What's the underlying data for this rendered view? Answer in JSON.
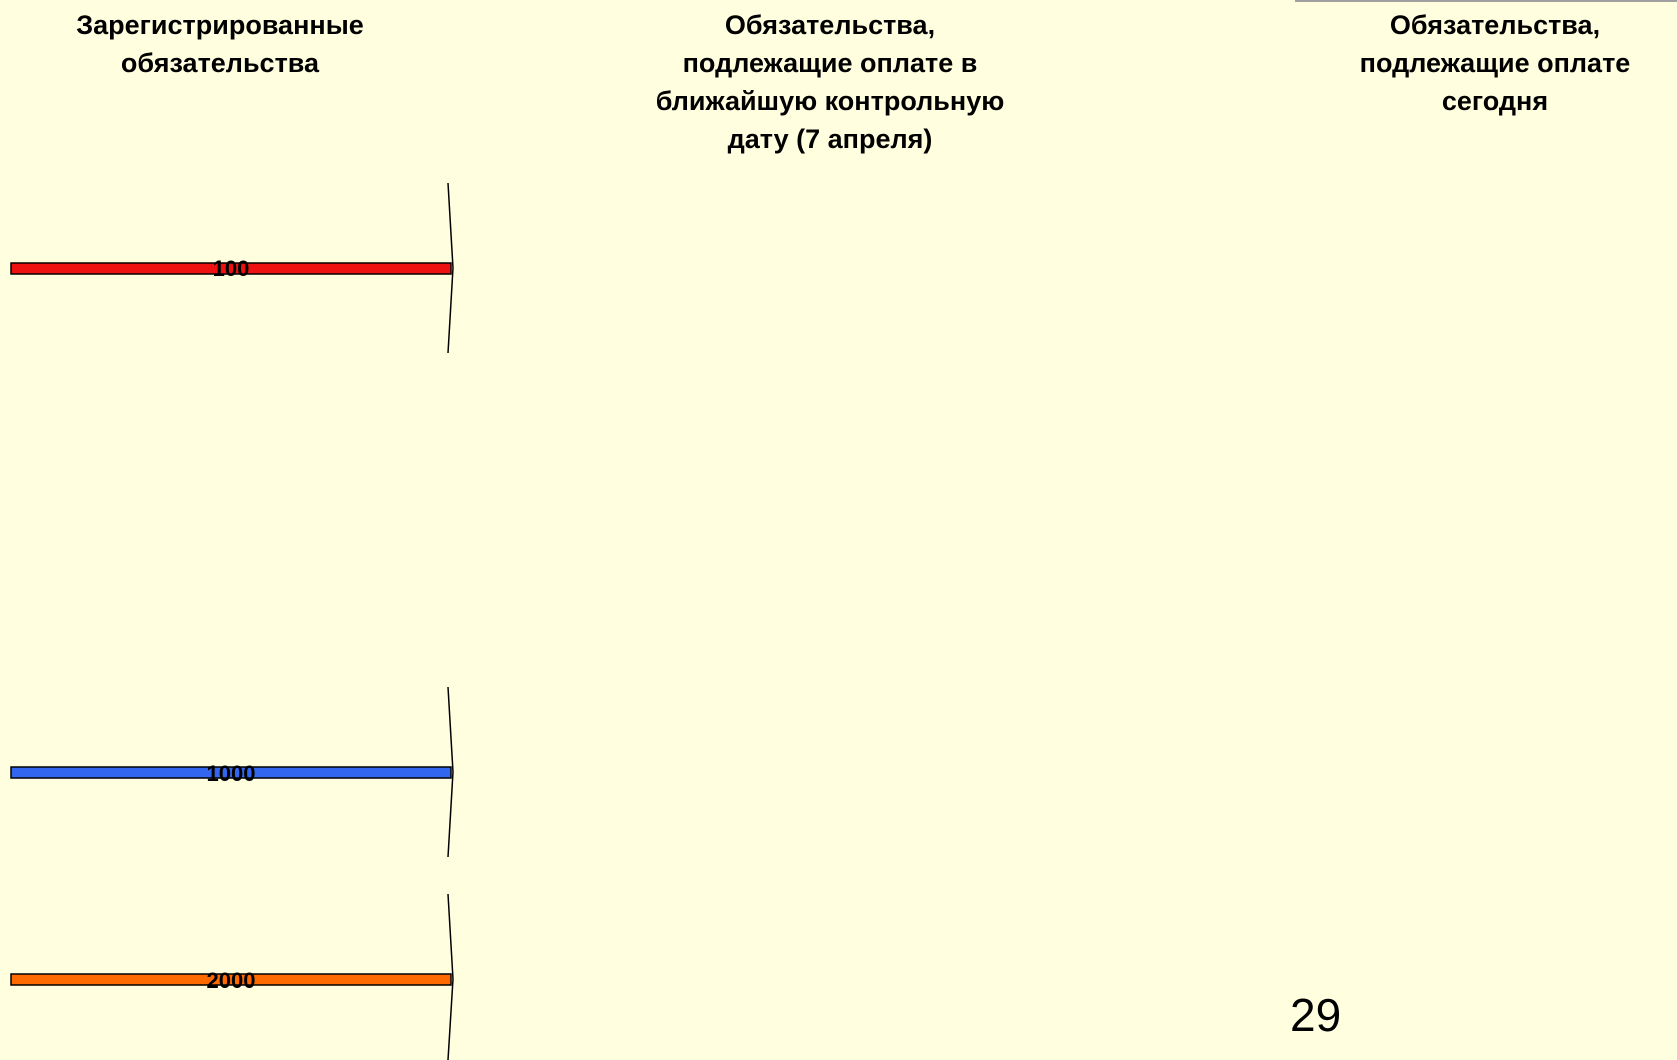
{
  "headers": {
    "registered": "Зарегистрированные\nобязательства",
    "due_next_date": "Обязательства,\nподлежащие оплате в\nближайшую контрольную\nдату (7 апреля)",
    "due_today": "Обязательства,\nподлежащие оплате\nсегодня"
  },
  "obligations": [
    {
      "label": "100",
      "color": "#ee1111"
    },
    {
      "label": "1000",
      "color": "#3366ee"
    },
    {
      "label": "2000",
      "color": "#ff6a00"
    }
  ],
  "page_number": "29"
}
